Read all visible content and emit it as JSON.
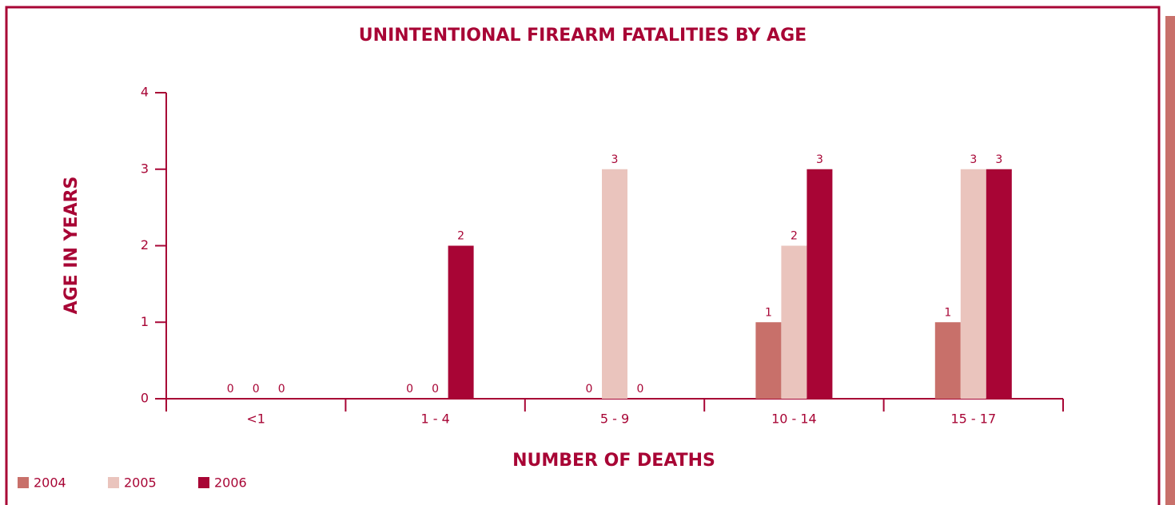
{
  "chart_data": {
    "type": "bar",
    "title": "UNINTENTIONAL FIREARM FATALITIES BY AGE",
    "y_label": "AGE IN YEARS",
    "x_label": "NUMBER OF DEATHS",
    "categories": [
      "<1",
      "1 - 4",
      "5 - 9",
      "10 - 14",
      "15 - 17"
    ],
    "series": [
      {
        "name": "2004",
        "color": "#c8706a",
        "values": [
          0,
          0,
          0,
          1,
          1
        ]
      },
      {
        "name": "2005",
        "color": "#eac4bd",
        "values": [
          0,
          0,
          3,
          2,
          3
        ]
      },
      {
        "name": "2006",
        "color": "#a80535",
        "values": [
          0,
          2,
          0,
          3,
          3
        ]
      }
    ],
    "ylim": [
      0,
      4
    ],
    "yticks": [
      0,
      1,
      2,
      3,
      4
    ],
    "legend": "bottom-left"
  }
}
